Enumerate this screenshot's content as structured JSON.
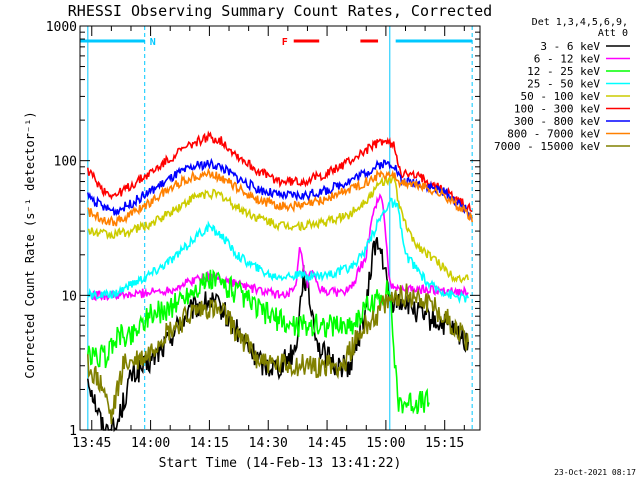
{
  "chart_data": {
    "type": "line",
    "title": "RHESSI Observing Summary Count Rates, Corrected",
    "xlabel": "Start Time (14-Feb-13 13:41:22)",
    "ylabel": "Corrected Count Rate (s⁻¹ detector⁻¹)",
    "yscale": "log",
    "ylim": [
      1,
      1000
    ],
    "xlim_minutes": [
      -3,
      99
    ],
    "x_ticks": [
      {
        "label": "13:45",
        "minute": 0
      },
      {
        "label": "14:00",
        "minute": 15
      },
      {
        "label": "14:15",
        "minute": 30
      },
      {
        "label": "14:30",
        "minute": 45
      },
      {
        "label": "14:45",
        "minute": 60
      },
      {
        "label": "15:00",
        "minute": 75
      },
      {
        "label": "15:15",
        "minute": 90
      }
    ],
    "y_ticks": [
      {
        "label": "1",
        "value": 1
      },
      {
        "label": "10",
        "value": 10
      },
      {
        "label": "100",
        "value": 100
      },
      {
        "label": "1000",
        "value": 1000
      }
    ],
    "legend_header": [
      "Det 1,3,4,5,6,9,",
      "Att 0"
    ],
    "legend_placement": "right",
    "footer_date": "23-Oct-2021 08:17",
    "flags": [
      {
        "label": "N",
        "color": "#00c8ff",
        "segments": [
          [
            -3,
            13.5
          ],
          [
            77.5,
            97
          ]
        ]
      },
      {
        "label": "F",
        "color": "#ff0000",
        "segments": [
          [
            51.5,
            58
          ],
          [
            68.5,
            73
          ]
        ]
      }
    ],
    "markers": [
      {
        "minute": -1,
        "style": "solid",
        "color": "#00c8ff"
      },
      {
        "minute": 13.5,
        "style": "dashed",
        "color": "#00c8ff"
      },
      {
        "minute": 76,
        "style": "solid",
        "color": "#00c8ff"
      },
      {
        "minute": 97,
        "style": "dashed",
        "color": "#00c8ff"
      }
    ],
    "series": [
      {
        "name": "3 - 6 keV",
        "color": "#000000",
        "points": [
          [
            -1,
            2.5
          ],
          [
            3,
            1.0
          ],
          [
            6,
            1.0
          ],
          [
            10,
            2.5
          ],
          [
            14,
            3.0
          ],
          [
            18,
            4.0
          ],
          [
            22,
            6.0
          ],
          [
            26,
            8.0
          ],
          [
            30,
            9.0
          ],
          [
            33,
            8.0
          ],
          [
            36,
            6.0
          ],
          [
            40,
            4.0
          ],
          [
            44,
            3.0
          ],
          [
            48,
            3.0
          ],
          [
            52,
            4.0
          ],
          [
            54,
            15.0
          ],
          [
            56,
            8.0
          ],
          [
            58,
            4.0
          ],
          [
            62,
            3.0
          ],
          [
            66,
            3.0
          ],
          [
            70,
            8.0
          ],
          [
            72,
            25.0
          ],
          [
            74,
            20.0
          ],
          [
            76,
            9.0
          ],
          [
            80,
            9.0
          ],
          [
            84,
            7.0
          ],
          [
            90,
            6.0
          ],
          [
            96,
            4.5
          ]
        ]
      },
      {
        "name": "6 - 12 keV",
        "color": "#ff00ff",
        "points": [
          [
            -1,
            10.0
          ],
          [
            5,
            10.0
          ],
          [
            10,
            10.0
          ],
          [
            14,
            10.5
          ],
          [
            20,
            11.0
          ],
          [
            26,
            13.0
          ],
          [
            30,
            14.0
          ],
          [
            34,
            13.0
          ],
          [
            38,
            12.0
          ],
          [
            42,
            11.0
          ],
          [
            48,
            10.0
          ],
          [
            52,
            11.0
          ],
          [
            53,
            22.0
          ],
          [
            55,
            12.0
          ],
          [
            56,
            15.0
          ],
          [
            58,
            11.0
          ],
          [
            62,
            10.5
          ],
          [
            66,
            11.0
          ],
          [
            70,
            20.0
          ],
          [
            72,
            45.0
          ],
          [
            74,
            55.0
          ],
          [
            76,
            12.0
          ],
          [
            80,
            11.0
          ],
          [
            84,
            11.0
          ],
          [
            90,
            11.0
          ],
          [
            96,
            10.5
          ]
        ]
      },
      {
        "name": "12 - 25 keV",
        "color": "#00ff00",
        "points": [
          [
            -1,
            3.5
          ],
          [
            4,
            3.5
          ],
          [
            6,
            5.0
          ],
          [
            10,
            5.0
          ],
          [
            14,
            7.0
          ],
          [
            20,
            8.0
          ],
          [
            24,
            10.0
          ],
          [
            28,
            12.0
          ],
          [
            31,
            13.0
          ],
          [
            34,
            12.0
          ],
          [
            38,
            10.0
          ],
          [
            42,
            8.0
          ],
          [
            46,
            7.0
          ],
          [
            50,
            6.0
          ],
          [
            56,
            6.0
          ],
          [
            62,
            6.0
          ],
          [
            66,
            6.0
          ],
          [
            70,
            8.0
          ],
          [
            74,
            10.0
          ],
          [
            76,
            11.0
          ],
          [
            78,
            1.6
          ],
          [
            86,
            1.6
          ]
        ]
      },
      {
        "name": "25 - 50 keV",
        "color": "#00ffff",
        "points": [
          [
            -1,
            10.0
          ],
          [
            5,
            10.0
          ],
          [
            10,
            12.0
          ],
          [
            16,
            15.0
          ],
          [
            22,
            20.0
          ],
          [
            27,
            28.0
          ],
          [
            30,
            32.0
          ],
          [
            33,
            28.0
          ],
          [
            37,
            20.0
          ],
          [
            42,
            16.0
          ],
          [
            46,
            14.0
          ],
          [
            50,
            14.0
          ],
          [
            56,
            14.0
          ],
          [
            62,
            14.5
          ],
          [
            66,
            16.0
          ],
          [
            70,
            22.0
          ],
          [
            73,
            35.0
          ],
          [
            76,
            50.0
          ],
          [
            78,
            45.0
          ],
          [
            80,
            20.0
          ],
          [
            86,
            12.0
          ],
          [
            92,
            10.0
          ],
          [
            96,
            9.5
          ]
        ]
      },
      {
        "name": "50 - 100 keV",
        "color": "#cccc00",
        "points": [
          [
            -1,
            30.0
          ],
          [
            5,
            28.0
          ],
          [
            10,
            30.0
          ],
          [
            16,
            35.0
          ],
          [
            22,
            45.0
          ],
          [
            27,
            55.0
          ],
          [
            30,
            57.0
          ],
          [
            33,
            55.0
          ],
          [
            37,
            45.0
          ],
          [
            42,
            38.0
          ],
          [
            48,
            33.0
          ],
          [
            54,
            33.0
          ],
          [
            60,
            35.0
          ],
          [
            66,
            40.0
          ],
          [
            71,
            55.0
          ],
          [
            74,
            70.0
          ],
          [
            77,
            75.0
          ],
          [
            79,
            40.0
          ],
          [
            82,
            25.0
          ],
          [
            86,
            20.0
          ],
          [
            92,
            14.0
          ],
          [
            96,
            13.0
          ]
        ]
      },
      {
        "name": "100 - 300 keV",
        "color": "#ff0000",
        "points": [
          [
            -1,
            85.0
          ],
          [
            3,
            60.0
          ],
          [
            6,
            55.0
          ],
          [
            10,
            65.0
          ],
          [
            16,
            85.0
          ],
          [
            22,
            115.0
          ],
          [
            27,
            140.0
          ],
          [
            30,
            150.0
          ],
          [
            33,
            140.0
          ],
          [
            37,
            110.0
          ],
          [
            42,
            85.0
          ],
          [
            48,
            70.0
          ],
          [
            54,
            70.0
          ],
          [
            60,
            80.0
          ],
          [
            66,
            100.0
          ],
          [
            71,
            125.0
          ],
          [
            74,
            140.0
          ],
          [
            77,
            130.0
          ],
          [
            79,
            80.0
          ],
          [
            84,
            75.0
          ],
          [
            90,
            60.0
          ],
          [
            96,
            45.0
          ],
          [
            97,
            42.0
          ]
        ]
      },
      {
        "name": "300 - 800 keV",
        "color": "#0000ff",
        "points": [
          [
            -1,
            55.0
          ],
          [
            3,
            45.0
          ],
          [
            6,
            42.0
          ],
          [
            10,
            48.0
          ],
          [
            16,
            62.0
          ],
          [
            22,
            80.0
          ],
          [
            27,
            92.0
          ],
          [
            30,
            95.0
          ],
          [
            33,
            90.0
          ],
          [
            37,
            75.0
          ],
          [
            42,
            62.0
          ],
          [
            48,
            55.0
          ],
          [
            54,
            55.0
          ],
          [
            60,
            60.0
          ],
          [
            66,
            72.0
          ],
          [
            71,
            85.0
          ],
          [
            74,
            95.0
          ],
          [
            77,
            95.0
          ],
          [
            79,
            70.0
          ],
          [
            84,
            68.0
          ],
          [
            90,
            58.0
          ],
          [
            96,
            42.0
          ],
          [
            97,
            38.0
          ]
        ]
      },
      {
        "name": "800 - 7000 keV",
        "color": "#ff8000",
        "points": [
          [
            -1,
            42.0
          ],
          [
            3,
            37.0
          ],
          [
            6,
            35.0
          ],
          [
            10,
            40.0
          ],
          [
            16,
            52.0
          ],
          [
            22,
            68.0
          ],
          [
            27,
            78.0
          ],
          [
            30,
            80.0
          ],
          [
            33,
            76.0
          ],
          [
            37,
            63.0
          ],
          [
            42,
            52.0
          ],
          [
            48,
            46.0
          ],
          [
            54,
            46.0
          ],
          [
            60,
            52.0
          ],
          [
            66,
            62.0
          ],
          [
            71,
            72.0
          ],
          [
            74,
            80.0
          ],
          [
            77,
            78.0
          ],
          [
            79,
            68.0
          ],
          [
            84,
            65.0
          ],
          [
            90,
            55.0
          ],
          [
            96,
            40.0
          ],
          [
            97,
            35.0
          ]
        ]
      },
      {
        "name": "7000 - 15000 keV",
        "color": "#808000",
        "points": [
          [
            -1,
            3.0
          ],
          [
            3,
            2.0
          ],
          [
            5,
            1.2
          ],
          [
            8,
            3.0
          ],
          [
            14,
            3.5
          ],
          [
            18,
            5.0
          ],
          [
            22,
            6.0
          ],
          [
            26,
            7.5
          ],
          [
            30,
            8.0
          ],
          [
            34,
            7.0
          ],
          [
            38,
            5.0
          ],
          [
            42,
            3.5
          ],
          [
            46,
            3.0
          ],
          [
            50,
            3.0
          ],
          [
            56,
            3.0
          ],
          [
            60,
            3.0
          ],
          [
            64,
            3.0
          ],
          [
            66,
            4.0
          ],
          [
            70,
            6.0
          ],
          [
            74,
            8.0
          ],
          [
            78,
            10.0
          ],
          [
            82,
            10.0
          ],
          [
            86,
            9.0
          ],
          [
            92,
            6.0
          ],
          [
            96,
            4.5
          ]
        ]
      }
    ]
  }
}
